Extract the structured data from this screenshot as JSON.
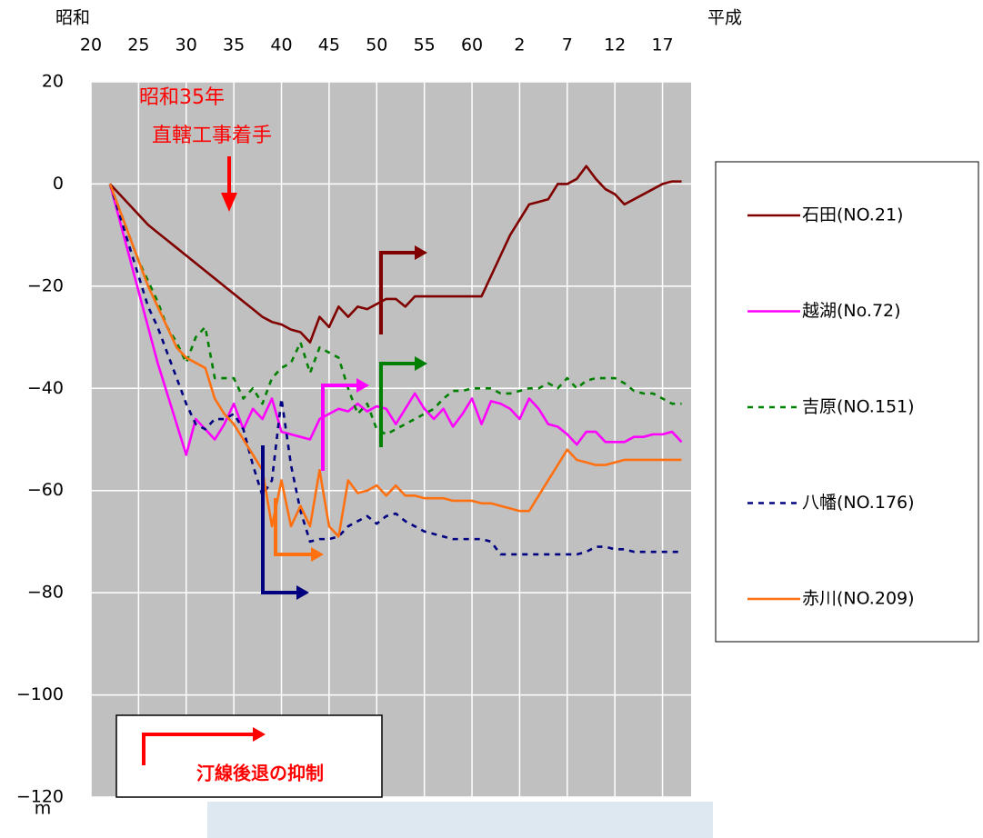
{
  "chart_data": {
    "type": "line",
    "era_labels": [
      "昭和",
      "平成"
    ],
    "y_unit": "m",
    "annotation": [
      "昭和35年",
      "直轄工事着手"
    ],
    "note": "汀線後退の抑制",
    "xlim": [
      1945,
      2008
    ],
    "ylim": [
      -120,
      20
    ],
    "xticks": [
      {
        "value": 1945,
        "label": "20"
      },
      {
        "value": 1950,
        "label": "25"
      },
      {
        "value": 1955,
        "label": "30"
      },
      {
        "value": 1960,
        "label": "35"
      },
      {
        "value": 1965,
        "label": "40"
      },
      {
        "value": 1970,
        "label": "45"
      },
      {
        "value": 1975,
        "label": "50"
      },
      {
        "value": 1980,
        "label": "55"
      },
      {
        "value": 1985,
        "label": "60"
      },
      {
        "value": 1990,
        "label": "2"
      },
      {
        "value": 1995,
        "label": "7"
      },
      {
        "value": 2000,
        "label": "12"
      },
      {
        "value": 2005,
        "label": "17"
      }
    ],
    "yticks": [
      20,
      0,
      {
        "value": -20,
        "label": "−20"
      },
      {
        "value": -40,
        "label": "−40"
      },
      {
        "value": -60,
        "label": "−60"
      },
      {
        "value": -80,
        "label": "−80"
      },
      {
        "value": -100,
        "label": "−100"
      },
      {
        "value": -120,
        "label": "−120"
      }
    ],
    "grid": true,
    "legend": "right",
    "x": [
      1947,
      1948,
      1949,
      1950,
      1951,
      1952,
      1953,
      1954,
      1955,
      1956,
      1957,
      1958,
      1959,
      1960,
      1961,
      1962,
      1963,
      1964,
      1965,
      1966,
      1967,
      1968,
      1969,
      1970,
      1971,
      1972,
      1973,
      1974,
      1975,
      1976,
      1977,
      1978,
      1979,
      1980,
      1981,
      1982,
      1983,
      1984,
      1985,
      1986,
      1987,
      1988,
      1989,
      1990,
      1991,
      1992,
      1993,
      1994,
      1995,
      1996,
      1997,
      1998,
      1999,
      2000,
      2001,
      2002,
      2003,
      2004,
      2005,
      2006,
      2007
    ],
    "series": [
      {
        "name": "石田(NO.21)",
        "color": "#800000",
        "line_style": "solid",
        "values": [
          0,
          -2,
          -4,
          -6,
          -8,
          -9.5,
          -11,
          -12.5,
          -14,
          -15.5,
          -17,
          -18.5,
          -20,
          -21.5,
          -23,
          -24.5,
          -26,
          -27,
          -27.5,
          -28.5,
          -29,
          -31,
          -26,
          -28,
          -24,
          -26,
          -24,
          -24.5,
          -23.5,
          -22.5,
          -22.5,
          -24,
          -22,
          -22,
          -22,
          -22,
          -22,
          -22,
          -22,
          -22,
          -18,
          -14,
          -10,
          -7,
          -4,
          -3.5,
          -3,
          0,
          0,
          1,
          3.5,
          1,
          -1,
          -2,
          -4,
          -3,
          -2,
          -1,
          0,
          0.5,
          0.5
        ]
      },
      {
        "name": "越湖(No.72)",
        "color": "#ff00ff",
        "line_style": "solid",
        "values": [
          0,
          -7,
          -14,
          -21,
          -28,
          -35,
          -41,
          -47,
          -53,
          -46,
          -48,
          -50,
          -47,
          -43,
          -48,
          -44,
          -46,
          -42,
          -48.5,
          -49,
          -49.5,
          -50,
          -46,
          -45,
          -44,
          -44.5,
          -43,
          -44.5,
          -43.5,
          -44,
          -47,
          -44,
          -41,
          -44,
          -46,
          -44,
          -47.5,
          -45,
          -42,
          -47,
          -42.5,
          -43,
          -44,
          -46,
          -42,
          -44,
          -47,
          -47.5,
          -49,
          -51,
          -48.5,
          -48.5,
          -50.5,
          -50.5,
          -50.5,
          -49.5,
          -49.5,
          -49,
          -49,
          -48.5,
          -50.5
        ]
      },
      {
        "name": "吉原(NO.151)",
        "color": "#008000",
        "line_style": "dashed",
        "values": [
          0,
          -5,
          -10,
          -15,
          -19,
          -23,
          -28,
          -31,
          -35,
          -30,
          -28,
          -38,
          -38,
          -38,
          -42,
          -40,
          -43,
          -38,
          -36,
          -35,
          -31,
          -37,
          -32,
          -33,
          -34,
          -40,
          -45,
          -43,
          -48,
          -49,
          -48,
          -47,
          -46,
          -45,
          -44,
          -42,
          -40.5,
          -40.5,
          -40,
          -40,
          -40,
          -41,
          -41,
          -40.5,
          -40,
          -40,
          -39,
          -40,
          -38,
          -40,
          -38.5,
          -38,
          -38,
          -38,
          -39,
          -40.5,
          -41,
          -41,
          -42,
          -43,
          -43
        ]
      },
      {
        "name": "八幡(NO.176)",
        "color": "#000080",
        "line_style": "dashed",
        "values": [
          0,
          -6,
          -12,
          -18,
          -24,
          -28,
          -33,
          -38,
          -43,
          -47,
          -48,
          -46,
          -46,
          -45,
          -48,
          -55,
          -61,
          -58,
          -42,
          -55,
          -64,
          -70,
          -69.5,
          -69.5,
          -69,
          -67,
          -66,
          -65,
          -66.5,
          -65,
          -64.5,
          -66,
          -67,
          -68,
          -68.5,
          -69,
          -69.5,
          -69.5,
          -69.5,
          -69.5,
          -70,
          -72.5,
          -72.5,
          -72.5,
          -72.5,
          -72.5,
          -72.5,
          -72.5,
          -72.5,
          -72.5,
          -72,
          -71,
          -71,
          -71.5,
          -71.5,
          -72,
          -72,
          -72,
          -72,
          -72,
          -72
        ]
      },
      {
        "name": "赤川(NO.209)",
        "color": "#ff7010",
        "line_style": "solid",
        "values": [
          0,
          -5,
          -10,
          -15,
          -20,
          -24,
          -28,
          -32,
          -34,
          -35,
          -36,
          -42,
          -45,
          -47,
          -50,
          -53,
          -56,
          -67,
          -58,
          -67,
          -63,
          -67,
          -56,
          -67,
          -69,
          -58,
          -60.5,
          -60,
          -59,
          -61,
          -59,
          -61,
          -61,
          -61.5,
          -61.5,
          -61.5,
          -62,
          -62,
          -62,
          -62.5,
          -62.5,
          -63,
          -63.5,
          -64,
          -64,
          -61,
          -58,
          -55,
          -52,
          -54,
          -54.5,
          -55,
          -55,
          -54.5,
          -54,
          -54,
          -54,
          -54,
          -54,
          -54,
          -54
        ]
      }
    ]
  }
}
